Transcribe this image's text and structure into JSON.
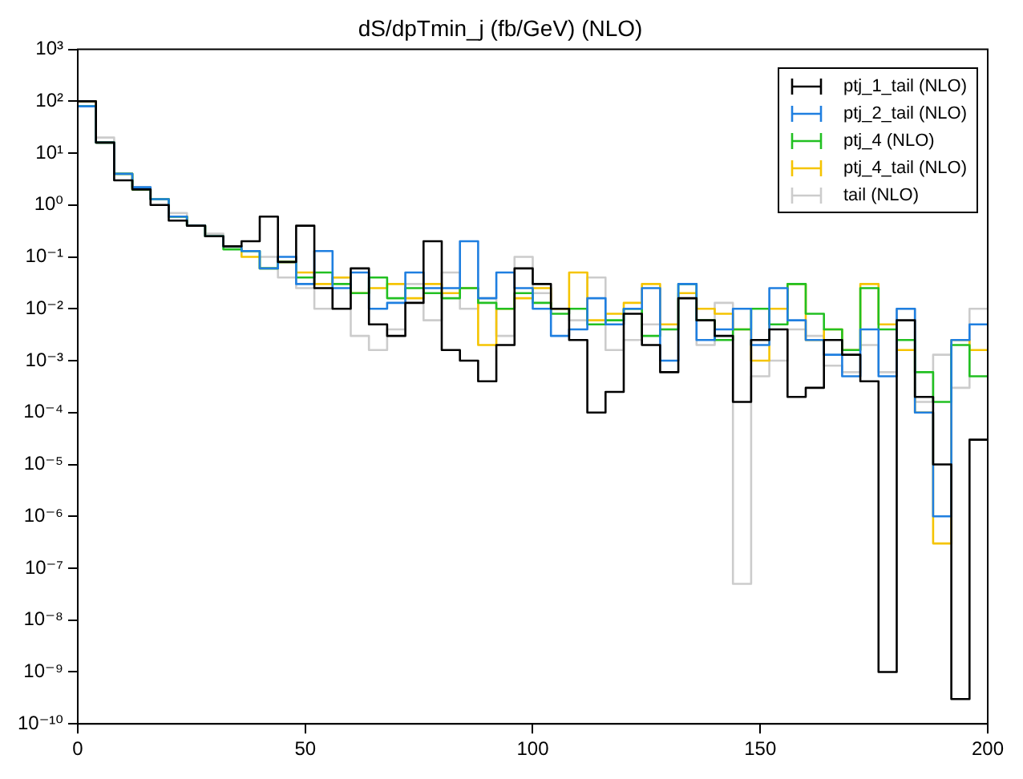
{
  "chart_data": {
    "type": "histogram",
    "title": "dS/dpTmin_j (fb/GeV) (NLO)",
    "log": "y",
    "legend": "top right",
    "grid": false,
    "bins": [
      0,
      4,
      8,
      12,
      16,
      20,
      24,
      28,
      32,
      36,
      40,
      44,
      48,
      52,
      56,
      60,
      64,
      68,
      72,
      76,
      80,
      84,
      88,
      92,
      96,
      100,
      104,
      108,
      112,
      116,
      120,
      124,
      128,
      132,
      136,
      140,
      144,
      148,
      152,
      156,
      160,
      164,
      168,
      172,
      176,
      180,
      184,
      188,
      192,
      196,
      200
    ],
    "xlim": [
      0,
      200
    ],
    "xticks": [
      0,
      50,
      100,
      150,
      200
    ],
    "ylim": [
      1e-10,
      1000
    ],
    "yticks": [
      {
        "value": 1e-10,
        "label": "10⁻¹⁰"
      },
      {
        "value": 1e-09,
        "label": "10⁻⁹"
      },
      {
        "value": 1e-08,
        "label": "10⁻⁸"
      },
      {
        "value": 1e-07,
        "label": "10⁻⁷"
      },
      {
        "value": 1e-06,
        "label": "10⁻⁶"
      },
      {
        "value": 1e-05,
        "label": "10⁻⁵"
      },
      {
        "value": 0.0001,
        "label": "10⁻⁴"
      },
      {
        "value": 0.001,
        "label": "10⁻³"
      },
      {
        "value": 0.01,
        "label": "10⁻²"
      },
      {
        "value": 0.1,
        "label": "10⁻¹"
      },
      {
        "value": 1,
        "label": "10⁰"
      },
      {
        "value": 10,
        "label": "10¹"
      },
      {
        "value": 100,
        "label": "10²"
      },
      {
        "value": 1000,
        "label": "10³"
      }
    ],
    "series": [
      {
        "name": "ptj_1_tail (NLO)",
        "color": "#000000",
        "values": [
          100.0,
          16.0,
          3,
          2,
          1,
          0.5,
          0.4,
          0.25,
          0.16,
          0.2,
          0.6,
          0.08,
          0.4,
          0.025,
          0.01,
          0.06,
          0.005,
          0.003,
          0.013,
          0.2,
          0.0016,
          0.001,
          0.0004,
          0.002,
          0.06,
          0.03,
          0.01,
          0.0025,
          0.0001,
          0.00025,
          0.008,
          0.002,
          0.0006,
          0.016,
          0.006,
          0.003,
          0.00016,
          0.0025,
          0.004,
          0.0002,
          0.0003,
          0.0025,
          0.0013,
          0.0004,
          1e-09,
          0.006,
          0.0002,
          1e-05,
          3e-10,
          3e-05
        ]
      },
      {
        "name": "ptj_2_tail (NLO)",
        "color": "#1f7fe0",
        "values": [
          80.0,
          16.0,
          4,
          2.2,
          1.3,
          0.6,
          0.4,
          0.25,
          0.16,
          0.13,
          0.06,
          0.1,
          0.03,
          0.13,
          0.025,
          0.05,
          0.01,
          0.013,
          0.05,
          0.025,
          0.025,
          0.2,
          0.016,
          0.05,
          0.025,
          0.01,
          0.003,
          0.004,
          0.016,
          0.005,
          0.01,
          0.025,
          0.001,
          0.03,
          0.0025,
          0.004,
          0.01,
          0.002,
          0.025,
          0.006,
          0.0025,
          0.0013,
          0.0005,
          0.004,
          0.0005,
          0.01,
          0.0001,
          1e-06,
          0.0025,
          0.005
        ]
      },
      {
        "name": "ptj_4 (NLO)",
        "color": "#22c022",
        "values": [
          80.0,
          16.0,
          4,
          2,
          1.3,
          0.6,
          0.4,
          0.25,
          0.14,
          0.13,
          0.06,
          0.08,
          0.04,
          0.05,
          0.03,
          0.02,
          0.04,
          0.016,
          0.025,
          0.02,
          0.016,
          0.025,
          0.013,
          0.01,
          0.02,
          0.013,
          0.008,
          0.01,
          0.005,
          0.006,
          0.01,
          0.003,
          0.004,
          0.03,
          0.006,
          0.0025,
          0.004,
          0.01,
          0.005,
          0.03,
          0.008,
          0.004,
          0.0016,
          0.025,
          0.004,
          0.0025,
          0.0006,
          0.00016,
          0.002,
          0.0005
        ]
      },
      {
        "name": "ptj_4_tail (NLO)",
        "color": "#f5c400",
        "values": [
          100.0,
          16.0,
          4,
          2,
          1.3,
          0.6,
          0.4,
          0.25,
          0.16,
          0.1,
          0.06,
          0.08,
          0.05,
          0.03,
          0.04,
          0.02,
          0.025,
          0.03,
          0.016,
          0.03,
          0.02,
          0.025,
          0.002,
          0.01,
          0.016,
          0.025,
          0.01,
          0.05,
          0.006,
          0.008,
          0.013,
          0.03,
          0.005,
          0.02,
          0.01,
          0.008,
          0.004,
          0.001,
          0.01,
          0.03,
          0.0025,
          0.004,
          0.0016,
          0.03,
          0.005,
          0.0016,
          0.0001,
          3e-07,
          0.0025,
          0.0016
        ]
      },
      {
        "name": "tail (NLO)",
        "color": "#cccccc",
        "values": [
          100.0,
          20.0,
          4,
          2.2,
          1.3,
          0.7,
          0.4,
          0.28,
          0.16,
          0.13,
          0.1,
          0.04,
          0.025,
          0.01,
          0.04,
          0.003,
          0.0016,
          0.004,
          0.03,
          0.006,
          0.05,
          0.01,
          0.016,
          0.003,
          0.1,
          0.02,
          0.01,
          0.006,
          0.04,
          0.0016,
          0.0025,
          0.005,
          0.004,
          0.016,
          0.002,
          0.013,
          5e-08,
          0.0005,
          0.001,
          0.004,
          0.003,
          0.0008,
          0.0006,
          0.002,
          0.0006,
          0.01,
          0.00016,
          0.0013,
          0.0003,
          0.01
        ]
      }
    ]
  }
}
